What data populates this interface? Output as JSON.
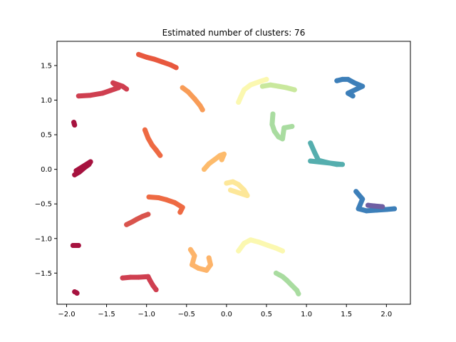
{
  "chart_data": {
    "type": "scatter",
    "title": "Estimated number of clusters: 76",
    "xlabel": "",
    "ylabel": "",
    "xlim": [
      -2.12,
      2.3
    ],
    "ylim": [
      -1.95,
      1.85
    ],
    "x_ticks": [
      -2.0,
      -1.5,
      -1.0,
      -0.5,
      0.0,
      0.5,
      1.0,
      1.5,
      2.0
    ],
    "x_tick_labels": [
      "−2.0",
      "−1.5",
      "−1.0",
      "−0.5",
      "0.0",
      "0.5",
      "1.0",
      "1.5",
      "2.0"
    ],
    "y_ticks": [
      -1.5,
      -1.0,
      -0.5,
      0.0,
      0.5,
      1.0,
      1.5
    ],
    "y_tick_labels": [
      "−1.5",
      "−1.0",
      "−0.5",
      "0.0",
      "0.5",
      "1.0",
      "1.5"
    ],
    "grid": false,
    "clusters": [
      {
        "color": "#a6123f",
        "points": [
          [
            -1.91,
            0.68
          ],
          [
            -1.9,
            0.64
          ],
          [
            -1.905,
            0.66
          ]
        ]
      },
      {
        "color": "#a6123f",
        "points": [
          [
            -1.9,
            -0.08
          ],
          [
            -1.84,
            -0.04
          ],
          [
            -1.78,
            0.02
          ],
          [
            -1.72,
            0.07
          ],
          [
            -1.7,
            0.11
          ],
          [
            -1.88,
            -0.02
          ],
          [
            -1.82,
            0.0
          ]
        ]
      },
      {
        "color": "#a6123f",
        "points": [
          [
            -1.92,
            -1.1
          ],
          [
            -1.88,
            -1.1
          ],
          [
            -1.85,
            -1.1
          ]
        ]
      },
      {
        "color": "#a6123f",
        "points": [
          [
            -1.9,
            -1.77
          ],
          [
            -1.88,
            -1.78
          ],
          [
            -1.87,
            -1.79
          ]
        ]
      },
      {
        "color": "#cf3f50",
        "points": [
          [
            -1.85,
            1.06
          ],
          [
            -1.7,
            1.07
          ],
          [
            -1.55,
            1.1
          ],
          [
            -1.45,
            1.14
          ],
          [
            -1.35,
            1.18
          ],
          [
            -1.42,
            1.25
          ],
          [
            -1.3,
            1.2
          ],
          [
            -1.25,
            1.16
          ]
        ]
      },
      {
        "color": "#cf3f50",
        "points": [
          [
            -1.3,
            -1.57
          ],
          [
            -1.2,
            -1.56
          ],
          [
            -1.1,
            -1.56
          ],
          [
            -0.98,
            -1.55
          ],
          [
            -0.96,
            -1.6
          ],
          [
            -0.92,
            -1.68
          ],
          [
            -0.88,
            -1.74
          ]
        ]
      },
      {
        "color": "#d9544d",
        "points": [
          [
            -1.25,
            -0.8
          ],
          [
            -1.18,
            -0.76
          ],
          [
            -1.12,
            -0.72
          ],
          [
            -1.05,
            -0.68
          ],
          [
            -0.98,
            -0.65
          ]
        ]
      },
      {
        "color": "#e8583e",
        "points": [
          [
            -1.1,
            1.66
          ],
          [
            -1.0,
            1.62
          ],
          [
            -0.9,
            1.59
          ],
          [
            -0.8,
            1.55
          ],
          [
            -0.7,
            1.51
          ],
          [
            -0.63,
            1.47
          ]
        ]
      },
      {
        "color": "#ee6a43",
        "points": [
          [
            -1.02,
            0.57
          ],
          [
            -0.98,
            0.45
          ],
          [
            -0.93,
            0.35
          ],
          [
            -0.88,
            0.28
          ],
          [
            -0.83,
            0.2
          ]
        ]
      },
      {
        "color": "#ee6a43",
        "points": [
          [
            -0.97,
            -0.4
          ],
          [
            -0.85,
            -0.41
          ],
          [
            -0.75,
            -0.44
          ],
          [
            -0.65,
            -0.48
          ],
          [
            -0.55,
            -0.55
          ],
          [
            -0.58,
            -0.62
          ]
        ]
      },
      {
        "color": "#f89c57",
        "points": [
          [
            -0.55,
            1.18
          ],
          [
            -0.48,
            1.12
          ],
          [
            -0.4,
            1.02
          ],
          [
            -0.33,
            0.92
          ],
          [
            -0.3,
            0.86
          ]
        ]
      },
      {
        "color": "#fdbb6c",
        "points": [
          [
            -0.28,
            0.0
          ],
          [
            -0.22,
            0.08
          ],
          [
            -0.15,
            0.14
          ],
          [
            -0.08,
            0.2
          ],
          [
            -0.03,
            0.22
          ],
          [
            -0.06,
            0.14
          ]
        ]
      },
      {
        "color": "#fdb46a",
        "points": [
          [
            -0.45,
            -1.16
          ],
          [
            -0.4,
            -1.25
          ],
          [
            -0.43,
            -1.38
          ],
          [
            -0.35,
            -1.43
          ],
          [
            -0.25,
            -1.46
          ],
          [
            -0.2,
            -1.38
          ],
          [
            -0.22,
            -1.28
          ]
        ]
      },
      {
        "color": "#fde799",
        "points": [
          [
            0.0,
            -0.2
          ],
          [
            0.08,
            -0.18
          ],
          [
            0.15,
            -0.22
          ],
          [
            0.22,
            -0.3
          ],
          [
            0.26,
            -0.38
          ],
          [
            0.05,
            -0.3
          ]
        ]
      },
      {
        "color": "#fbf8b0",
        "points": [
          [
            0.15,
            0.97
          ],
          [
            0.18,
            1.05
          ],
          [
            0.22,
            1.15
          ],
          [
            0.3,
            1.22
          ],
          [
            0.42,
            1.27
          ],
          [
            0.5,
            1.3
          ]
        ]
      },
      {
        "color": "#fbf8b0",
        "points": [
          [
            0.15,
            -1.18
          ],
          [
            0.22,
            -1.07
          ],
          [
            0.3,
            -1.02
          ],
          [
            0.4,
            -1.05
          ],
          [
            0.52,
            -1.1
          ],
          [
            0.62,
            -1.14
          ],
          [
            0.7,
            -1.18
          ]
        ]
      },
      {
        "color": "#c9e89d",
        "points": [
          [
            0.45,
            1.2
          ],
          [
            0.55,
            1.22
          ],
          [
            0.65,
            1.2
          ],
          [
            0.75,
            1.18
          ],
          [
            0.85,
            1.15
          ]
        ]
      },
      {
        "color": "#a9dca0",
        "points": [
          [
            0.58,
            0.8
          ],
          [
            0.57,
            0.65
          ],
          [
            0.6,
            0.55
          ],
          [
            0.65,
            0.47
          ],
          [
            0.7,
            0.44
          ],
          [
            0.72,
            0.6
          ],
          [
            0.82,
            0.62
          ]
        ]
      },
      {
        "color": "#a9dca0",
        "points": [
          [
            0.62,
            -1.5
          ],
          [
            0.7,
            -1.55
          ],
          [
            0.75,
            -1.6
          ],
          [
            0.82,
            -1.68
          ],
          [
            0.88,
            -1.75
          ],
          [
            0.9,
            -1.8
          ]
        ]
      },
      {
        "color": "#55aeae",
        "points": [
          [
            1.05,
            0.38
          ],
          [
            1.1,
            0.25
          ],
          [
            1.15,
            0.13
          ],
          [
            1.25,
            0.1
          ],
          [
            1.38,
            0.07
          ],
          [
            1.45,
            0.07
          ],
          [
            1.05,
            0.12
          ]
        ]
      },
      {
        "color": "#3d7fb9",
        "points": [
          [
            1.38,
            1.28
          ],
          [
            1.45,
            1.3
          ],
          [
            1.52,
            1.3
          ],
          [
            1.6,
            1.25
          ],
          [
            1.7,
            1.2
          ],
          [
            1.52,
            1.1
          ],
          [
            1.58,
            1.06
          ]
        ]
      },
      {
        "color": "#3d7fb9",
        "points": [
          [
            1.62,
            -0.32
          ],
          [
            1.7,
            -0.43
          ],
          [
            1.65,
            -0.57
          ],
          [
            1.75,
            -0.6
          ],
          [
            1.88,
            -0.59
          ],
          [
            2.0,
            -0.58
          ],
          [
            2.1,
            -0.57
          ]
        ]
      },
      {
        "color": "#6f5fa3",
        "points": [
          [
            1.77,
            -0.52
          ],
          [
            1.85,
            -0.53
          ],
          [
            1.95,
            -0.54
          ]
        ]
      }
    ]
  }
}
